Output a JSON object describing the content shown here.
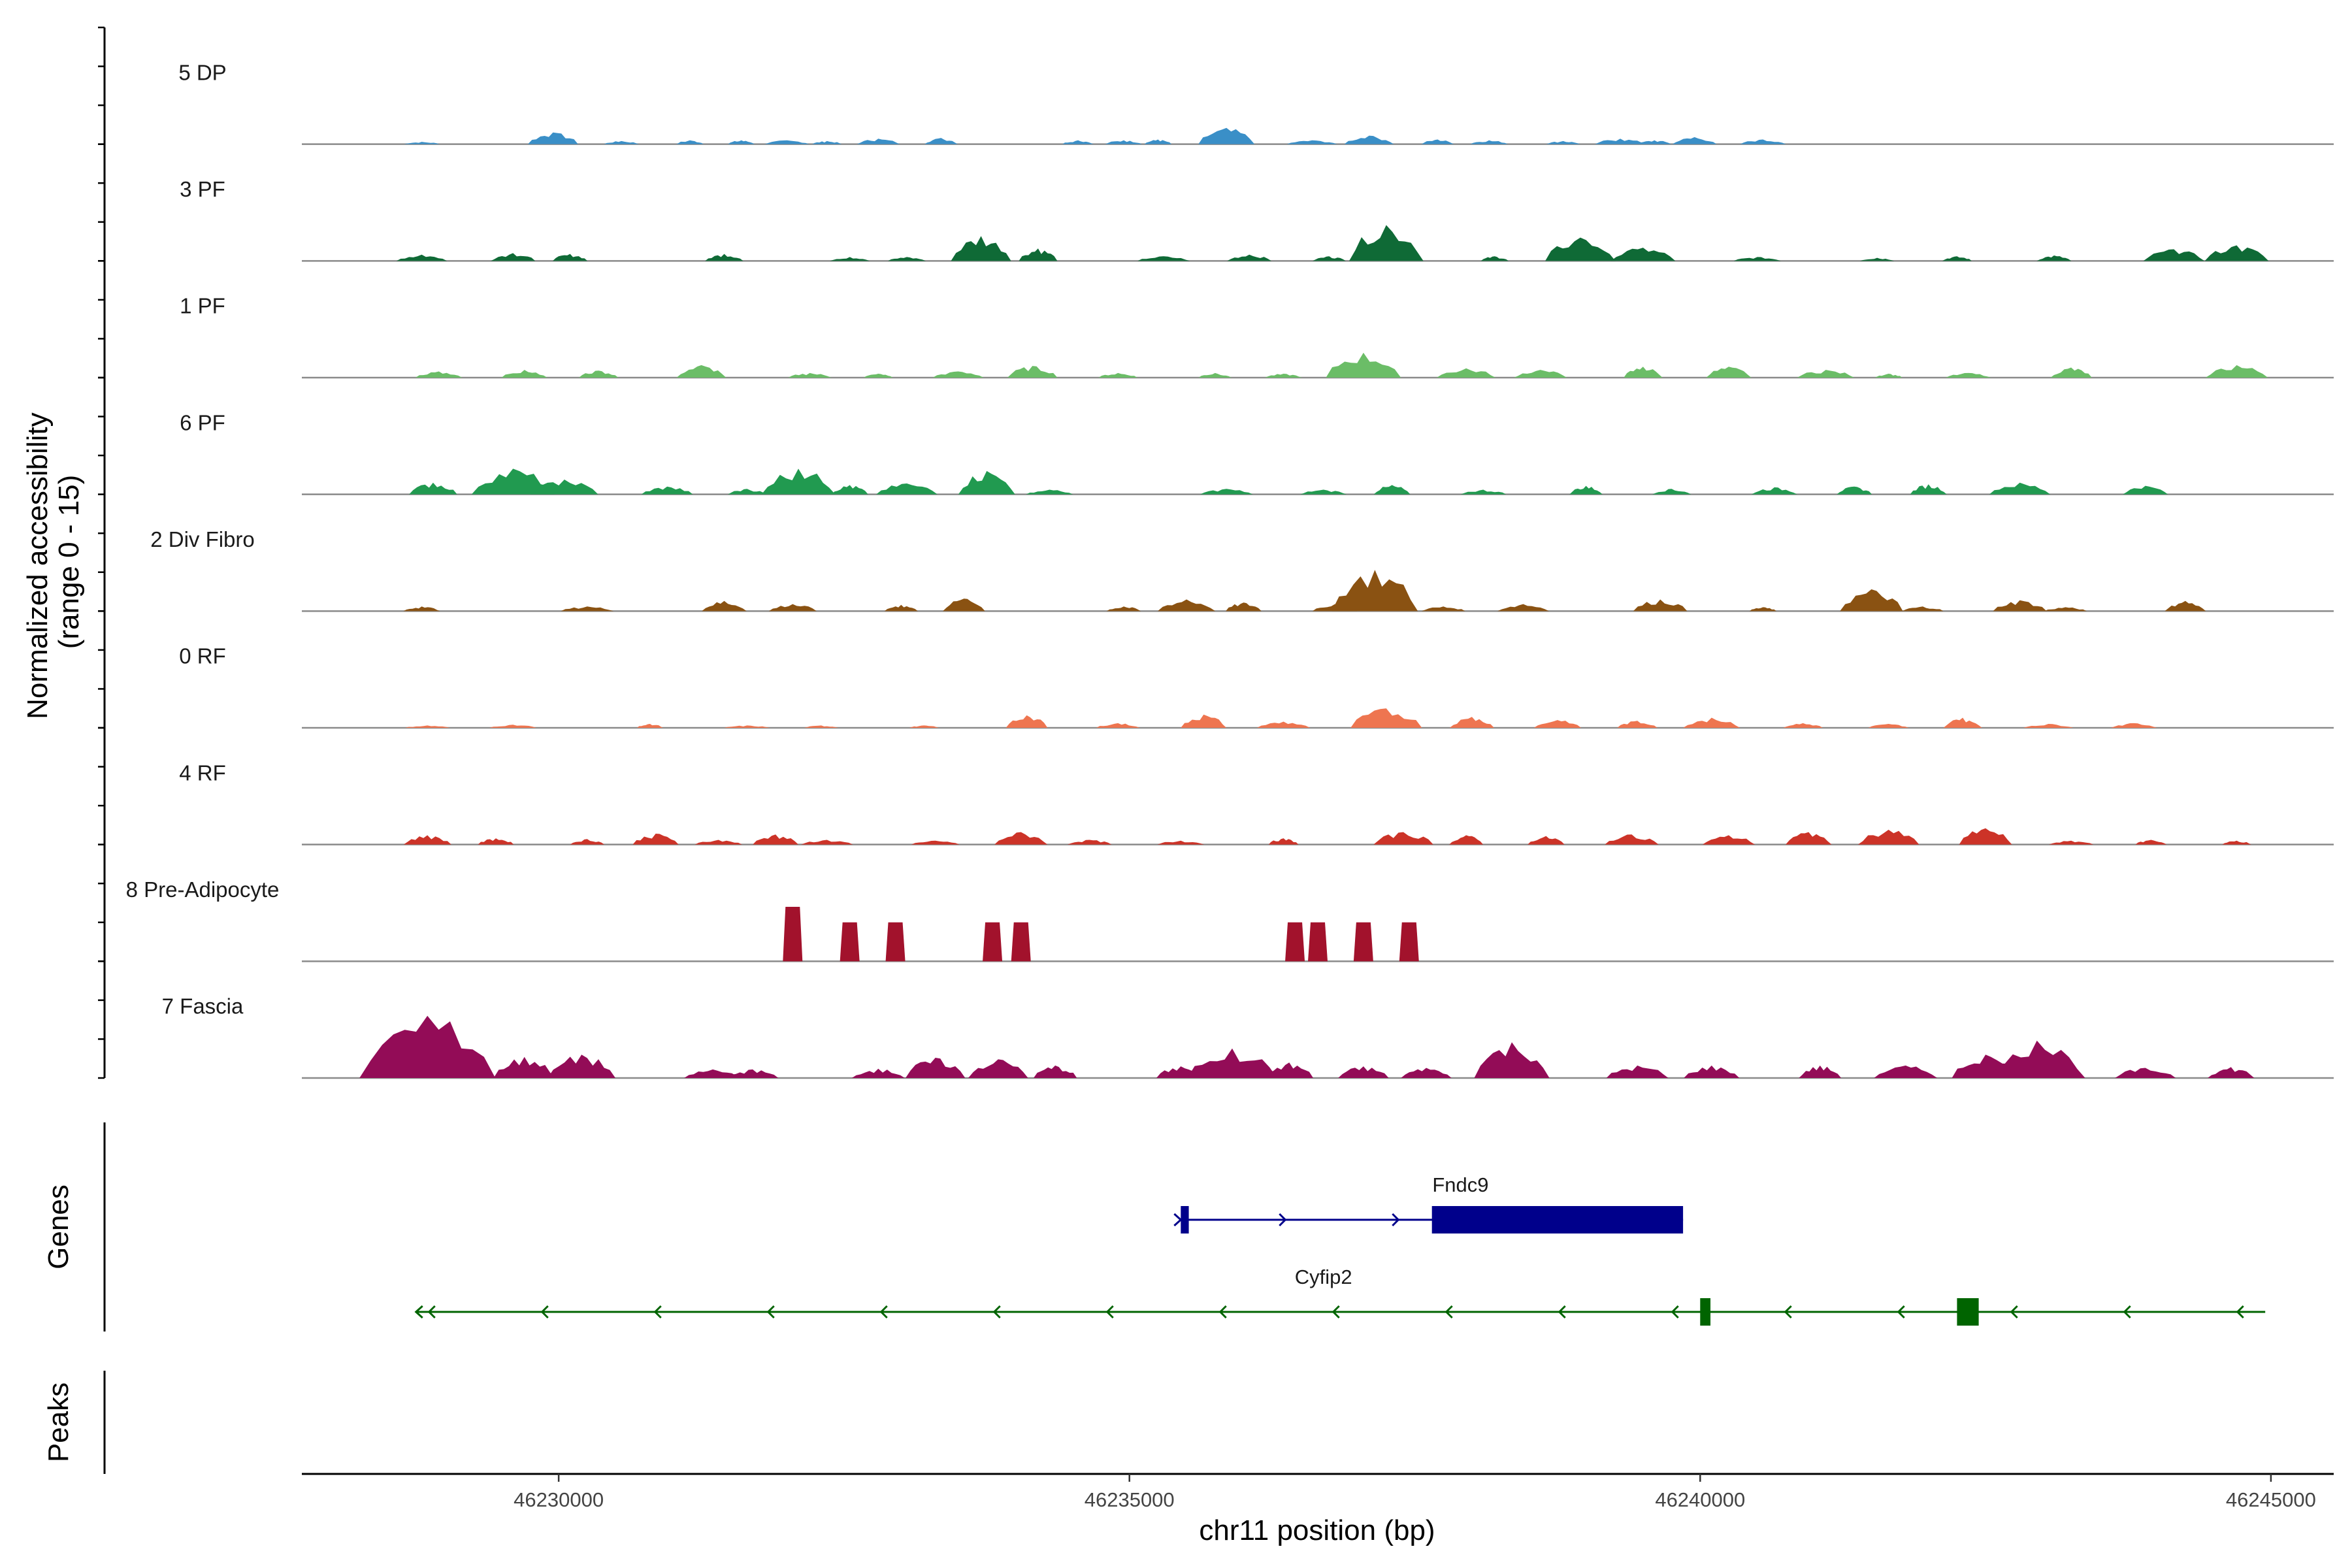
{
  "chart_data": {
    "type": "area",
    "title": "",
    "chromosome": "chr11",
    "xlabel": "chr11 position (bp)",
    "ylabel": "Normalized accessibility\n(range 0 - 15)",
    "ylabel_lines": [
      "Normalized accessibility",
      "(range 0 - 15)"
    ],
    "ylim": [
      0,
      15
    ],
    "xlim": [
      46227750,
      46245550
    ],
    "xticks": [
      46230000,
      46235000,
      46240000,
      46245000
    ],
    "xtick_labels": [
      "46230000",
      "46235000",
      "46240000",
      "46245000"
    ],
    "tracks": [
      {
        "name": "5 DP",
        "color": "#3a8fc7",
        "peaks": [
          [
            46228800,
            0.3
          ],
          [
            46229950,
            1.5
          ],
          [
            46230550,
            0.4
          ],
          [
            46231150,
            0.5
          ],
          [
            46231600,
            0.5
          ],
          [
            46232000,
            0.5
          ],
          [
            46232350,
            0.4
          ],
          [
            46232800,
            0.7
          ],
          [
            46233350,
            0.8
          ],
          [
            46234550,
            0.5
          ],
          [
            46234950,
            0.5
          ],
          [
            46235250,
            0.6
          ],
          [
            46235850,
            2.1
          ],
          [
            46236600,
            0.5
          ],
          [
            46237100,
            1.1
          ],
          [
            46237700,
            0.6
          ],
          [
            46238150,
            0.5
          ],
          [
            46238800,
            0.4
          ],
          [
            46239300,
            0.7
          ],
          [
            46239600,
            0.5
          ],
          [
            46239950,
            0.9
          ],
          [
            46240550,
            0.6
          ]
        ]
      },
      {
        "name": "3 PF",
        "color": "#0f6a36",
        "peaks": [
          [
            46228800,
            0.8
          ],
          [
            46229600,
            1.0
          ],
          [
            46230100,
            0.9
          ],
          [
            46231450,
            0.9
          ],
          [
            46232550,
            0.5
          ],
          [
            46233050,
            0.5
          ],
          [
            46233700,
            3.2
          ],
          [
            46234200,
            1.6
          ],
          [
            46235300,
            0.6
          ],
          [
            46236050,
            0.8
          ],
          [
            46236750,
            0.6
          ],
          [
            46237250,
            4.6
          ],
          [
            46238200,
            0.6
          ],
          [
            46238950,
            3.0
          ],
          [
            46239500,
            1.7
          ],
          [
            46240500,
            0.5
          ],
          [
            46241550,
            0.4
          ],
          [
            46242250,
            0.6
          ],
          [
            46243100,
            0.7
          ],
          [
            46244150,
            1.5
          ],
          [
            46244700,
            2.0
          ]
        ]
      },
      {
        "name": "1 PF",
        "color": "#6bbd67",
        "peaks": [
          [
            46228950,
            0.8
          ],
          [
            46229700,
            1.0
          ],
          [
            46230350,
            0.9
          ],
          [
            46231250,
            1.6
          ],
          [
            46232200,
            0.6
          ],
          [
            46232800,
            0.5
          ],
          [
            46233500,
            0.8
          ],
          [
            46234150,
            1.5
          ],
          [
            46234900,
            0.6
          ],
          [
            46235750,
            0.6
          ],
          [
            46236350,
            0.5
          ],
          [
            46237050,
            3.2
          ],
          [
            46237950,
            1.2
          ],
          [
            46238600,
            1.0
          ],
          [
            46239500,
            1.4
          ],
          [
            46240250,
            1.4
          ],
          [
            46241100,
            1.0
          ],
          [
            46241650,
            0.5
          ],
          [
            46242350,
            0.6
          ],
          [
            46243250,
            1.3
          ],
          [
            46244700,
            1.6
          ]
        ]
      },
      {
        "name": "6 PF",
        "color": "#219a50",
        "peaks": [
          [
            46228900,
            1.5
          ],
          [
            46229600,
            3.3
          ],
          [
            46230050,
            1.9
          ],
          [
            46230950,
            1.0
          ],
          [
            46231650,
            0.7
          ],
          [
            46232100,
            3.3
          ],
          [
            46232550,
            1.2
          ],
          [
            46233050,
            1.4
          ],
          [
            46233750,
            3.0
          ],
          [
            46234300,
            0.6
          ],
          [
            46235850,
            0.7
          ],
          [
            46236700,
            0.6
          ],
          [
            46237300,
            1.2
          ],
          [
            46238100,
            0.6
          ],
          [
            46239000,
            1.1
          ],
          [
            46239750,
            0.7
          ],
          [
            46240650,
            0.9
          ],
          [
            46241350,
            1.0
          ],
          [
            46242000,
            1.3
          ],
          [
            46242800,
            1.5
          ],
          [
            46243900,
            1.1
          ]
        ]
      },
      {
        "name": "2 Div Fibro",
        "color": "#8a5212",
        "peaks": [
          [
            46228800,
            0.6
          ],
          [
            46230250,
            0.6
          ],
          [
            46231450,
            1.3
          ],
          [
            46232050,
            0.9
          ],
          [
            46233000,
            0.8
          ],
          [
            46233550,
            1.6
          ],
          [
            46234950,
            0.6
          ],
          [
            46235500,
            1.5
          ],
          [
            46236000,
            1.1
          ],
          [
            46236800,
            0.9
          ],
          [
            46237150,
            5.3
          ],
          [
            46237750,
            0.6
          ],
          [
            46238450,
            0.9
          ],
          [
            46239650,
            1.5
          ],
          [
            46240550,
            0.5
          ],
          [
            46241500,
            2.8
          ],
          [
            46241950,
            0.6
          ],
          [
            46242800,
            1.4
          ],
          [
            46243200,
            0.5
          ],
          [
            46244250,
            1.3
          ]
        ]
      },
      {
        "name": "0 RF",
        "color": "#ee7550",
        "peaks": [
          [
            46228850,
            0.3
          ],
          [
            46229600,
            0.4
          ],
          [
            46230800,
            0.5
          ],
          [
            46231650,
            0.3
          ],
          [
            46232300,
            0.3
          ],
          [
            46233200,
            0.3
          ],
          [
            46234100,
            1.6
          ],
          [
            46234900,
            0.6
          ],
          [
            46235650,
            1.7
          ],
          [
            46236350,
            0.8
          ],
          [
            46237250,
            2.5
          ],
          [
            46238000,
            1.4
          ],
          [
            46238750,
            1.0
          ],
          [
            46239450,
            0.9
          ],
          [
            46240100,
            1.3
          ],
          [
            46240900,
            0.6
          ],
          [
            46241650,
            0.5
          ],
          [
            46242300,
            1.3
          ],
          [
            46243050,
            0.5
          ],
          [
            46243800,
            0.6
          ]
        ]
      },
      {
        "name": "4 RF",
        "color": "#cc3328",
        "peaks": [
          [
            46228850,
            1.2
          ],
          [
            46229450,
            0.8
          ],
          [
            46230250,
            0.7
          ],
          [
            46230850,
            1.4
          ],
          [
            46231400,
            0.6
          ],
          [
            46231900,
            1.3
          ],
          [
            46232350,
            0.6
          ],
          [
            46233300,
            0.5
          ],
          [
            46234050,
            1.6
          ],
          [
            46234650,
            0.6
          ],
          [
            46235450,
            0.5
          ],
          [
            46236350,
            0.8
          ],
          [
            46237400,
            1.6
          ],
          [
            46237950,
            1.2
          ],
          [
            46238650,
            1.1
          ],
          [
            46239400,
            1.3
          ],
          [
            46240250,
            1.2
          ],
          [
            46240950,
            1.6
          ],
          [
            46241650,
            1.9
          ],
          [
            46242500,
            2.1
          ],
          [
            46243250,
            0.5
          ],
          [
            46243950,
            0.6
          ],
          [
            46244700,
            0.5
          ]
        ]
      },
      {
        "name": "8 Pre-Adipocyte",
        "color": "#a2122c",
        "peaks": [
          [
            46232050,
            7.0
          ],
          [
            46232550,
            5.0
          ],
          [
            46232950,
            5.0
          ],
          [
            46233800,
            5.0
          ],
          [
            46234050,
            5.0
          ],
          [
            46236450,
            5.0
          ],
          [
            46236650,
            5.0
          ],
          [
            46237050,
            5.0
          ],
          [
            46237450,
            5.0
          ]
        ]
      },
      {
        "name": "7 Fascia",
        "color": "#930c57",
        "peaks": [
          [
            46228850,
            8.0
          ],
          [
            46229700,
            2.7
          ],
          [
            46230200,
            3.0
          ],
          [
            46231350,
            1.1
          ],
          [
            46231700,
            1.1
          ],
          [
            46232800,
            1.2
          ],
          [
            46233300,
            2.6
          ],
          [
            46233850,
            2.4
          ],
          [
            46234350,
            1.6
          ],
          [
            46235450,
            1.5
          ],
          [
            46235900,
            3.8
          ],
          [
            46236400,
            2.0
          ],
          [
            46237050,
            1.5
          ],
          [
            46237600,
            1.3
          ],
          [
            46238350,
            4.6
          ],
          [
            46239450,
            1.6
          ],
          [
            46240100,
            1.6
          ],
          [
            46241050,
            1.6
          ],
          [
            46241800,
            1.6
          ],
          [
            46242500,
            3.0
          ],
          [
            46242950,
            4.8
          ],
          [
            46243900,
            1.3
          ],
          [
            46244650,
            1.4
          ]
        ]
      }
    ],
    "genes": [
      {
        "name": "Fndc9",
        "strand": "+",
        "color": "#00008b",
        "start": 46235450,
        "end": 46239850,
        "exons": [
          [
            46235450,
            46235520
          ],
          [
            46237650,
            46239850
          ]
        ]
      },
      {
        "name": "Cyfip2",
        "strand": "-",
        "color": "#006400",
        "start": 46228750,
        "end": 46244950,
        "exons": [
          [
            46240000,
            46240090
          ],
          [
            46242250,
            46242440
          ]
        ]
      }
    ],
    "gene_panel_label": "Genes",
    "peaks_panel_label": "Peaks",
    "peaks_panel": []
  }
}
